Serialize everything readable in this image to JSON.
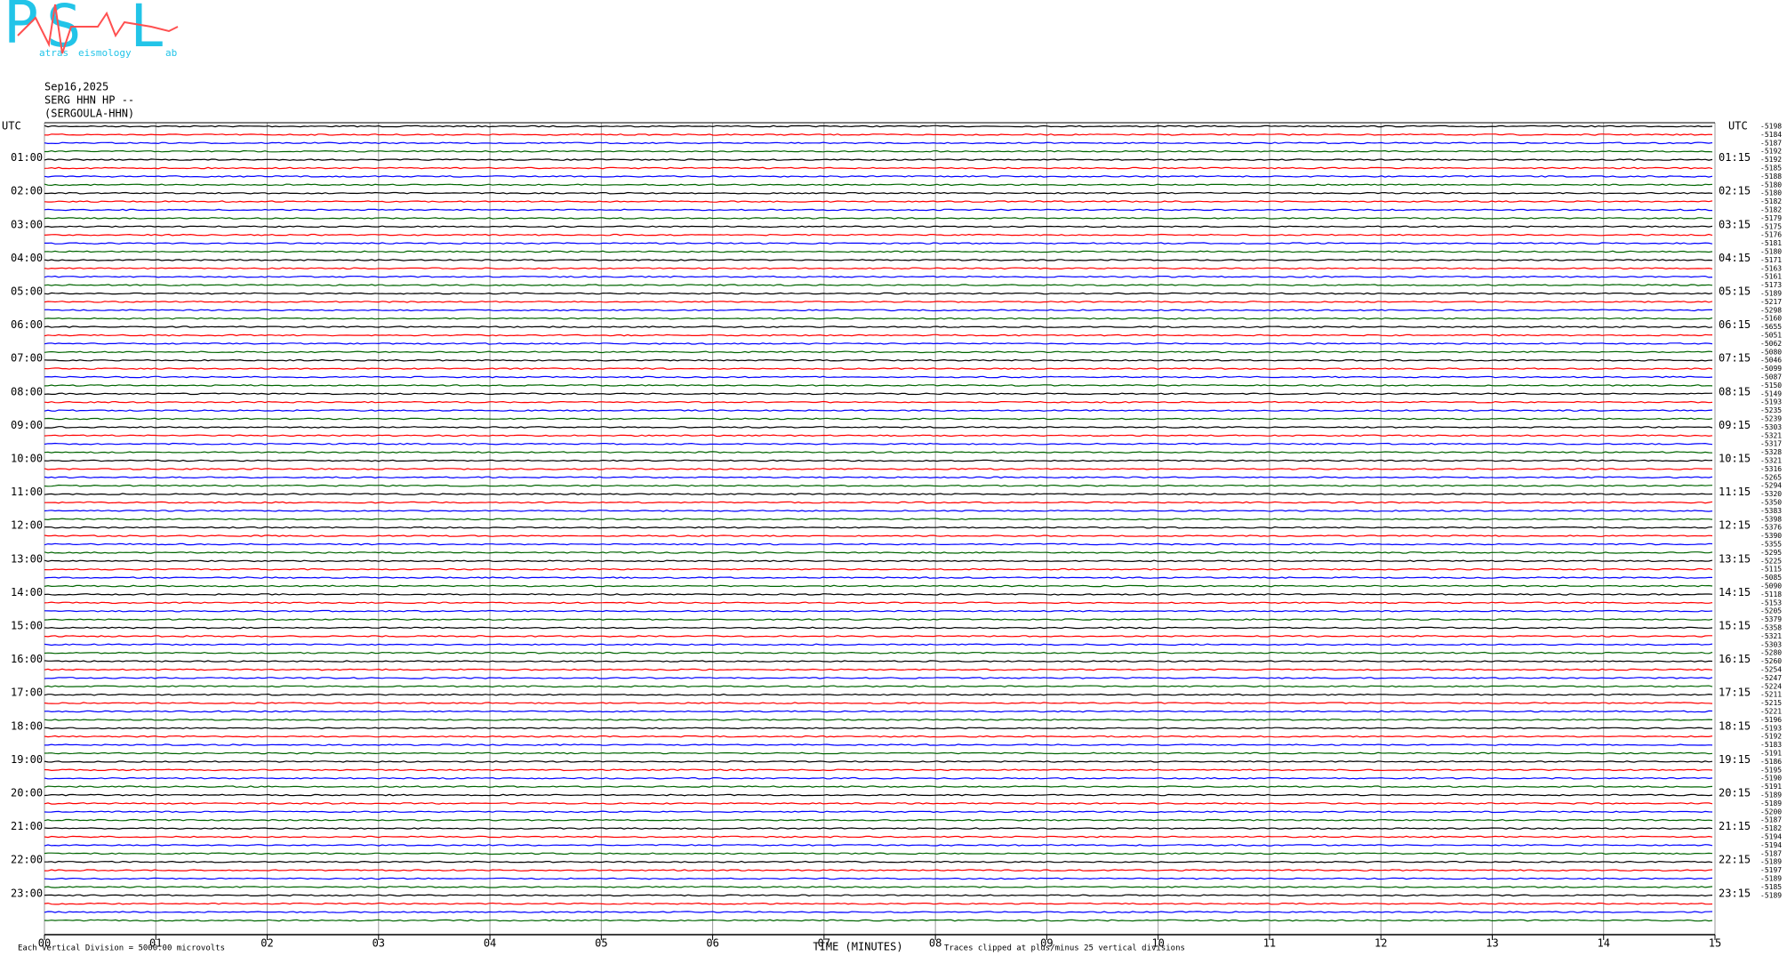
{
  "chart_data": {
    "type": "helicorder",
    "logo": {
      "letters": [
        "P",
        "S",
        "L"
      ],
      "words": [
        "atras",
        "eismology",
        "ab"
      ]
    },
    "date": "Sep16,2025",
    "station": "SERG HHN HP --",
    "station_name": "(SERGOULA-HHN)",
    "time_zone": "UTC",
    "left_labels": [
      "01:00",
      "02:00",
      "03:00",
      "04:00",
      "05:00",
      "06:00",
      "07:00",
      "08:00",
      "09:00",
      "10:00",
      "11:00",
      "12:00",
      "13:00",
      "14:00",
      "15:00",
      "16:00",
      "17:00",
      "18:00",
      "19:00",
      "20:00",
      "21:00",
      "22:00",
      "23:00"
    ],
    "right_labels": [
      "01:15",
      "02:15",
      "03:15",
      "04:15",
      "05:15",
      "06:15",
      "07:15",
      "08:15",
      "09:15",
      "10:15",
      "11:15",
      "12:15",
      "13:15",
      "14:15",
      "15:15",
      "16:15",
      "17:15",
      "18:15",
      "19:15",
      "20:15",
      "21:15",
      "22:15",
      "23:15"
    ],
    "offsets": [
      "-5198",
      "-5184",
      "-5187",
      "-5192",
      "-5192",
      "-5185",
      "-5188",
      "-5180",
      "-5180",
      "-5182",
      "-5182",
      "-5179",
      "-5175",
      "-5176",
      "-5181",
      "-5180",
      "-5171",
      "-5163",
      "-5161",
      "-5173",
      "-5189",
      "-5217",
      "-5298",
      "-5160",
      "-5655",
      "-5051",
      "-5062",
      "-5080",
      "-5046",
      "-5099",
      "-5087",
      "-5150",
      "-5149",
      "-5193",
      "-5235",
      "-5239",
      "-5303",
      "-5321",
      "-5317",
      "-5328",
      "-5321",
      "-5316",
      "-5265",
      "-5294",
      "-5320",
      "-5350",
      "-5383",
      "-5398",
      "-5376",
      "-5390",
      "-5355",
      "-5295",
      "-5225",
      "-5115",
      "-5085",
      "-5090",
      "-5118",
      "-5153",
      "-5205",
      "-5379",
      "-5358",
      "-5321",
      "-5303",
      "-5280",
      "-5260",
      "-5254",
      "-5247",
      "-5224",
      "-5211",
      "-5215",
      "-5221",
      "-5196",
      "-5193",
      "-5192",
      "-5183",
      "-5191",
      "-5186",
      "-5195",
      "-5190",
      "-5191",
      "-5189",
      "-5189",
      "-5200",
      "-5187",
      "-5182",
      "-5194",
      "-5194",
      "-5187",
      "-5189",
      "-5197",
      "-5189",
      "-5185",
      "-5189"
    ],
    "trace_colors": [
      "#000000",
      "#ff0000",
      "#0000ff",
      "#006400"
    ],
    "xlim": [
      0,
      15
    ],
    "xticks": [
      {
        "value": 0,
        "label": "00"
      },
      {
        "value": 1,
        "label": "01"
      },
      {
        "value": 2,
        "label": "02"
      },
      {
        "value": 3,
        "label": "03"
      },
      {
        "value": 4,
        "label": "04"
      },
      {
        "value": 5,
        "label": "05"
      },
      {
        "value": 6,
        "label": "06"
      },
      {
        "value": 7,
        "label": "07"
      },
      {
        "value": 8,
        "label": "08"
      },
      {
        "value": 9,
        "label": "09"
      },
      10,
      11,
      12,
      13,
      14,
      15
    ],
    "xlabel": "TIME (MINUTES)",
    "scale_note": "Each Vertical Division = 5000.00 microvolts",
    "clip_note": "Traces clipped at plus/minus 25 vertical divisions"
  }
}
